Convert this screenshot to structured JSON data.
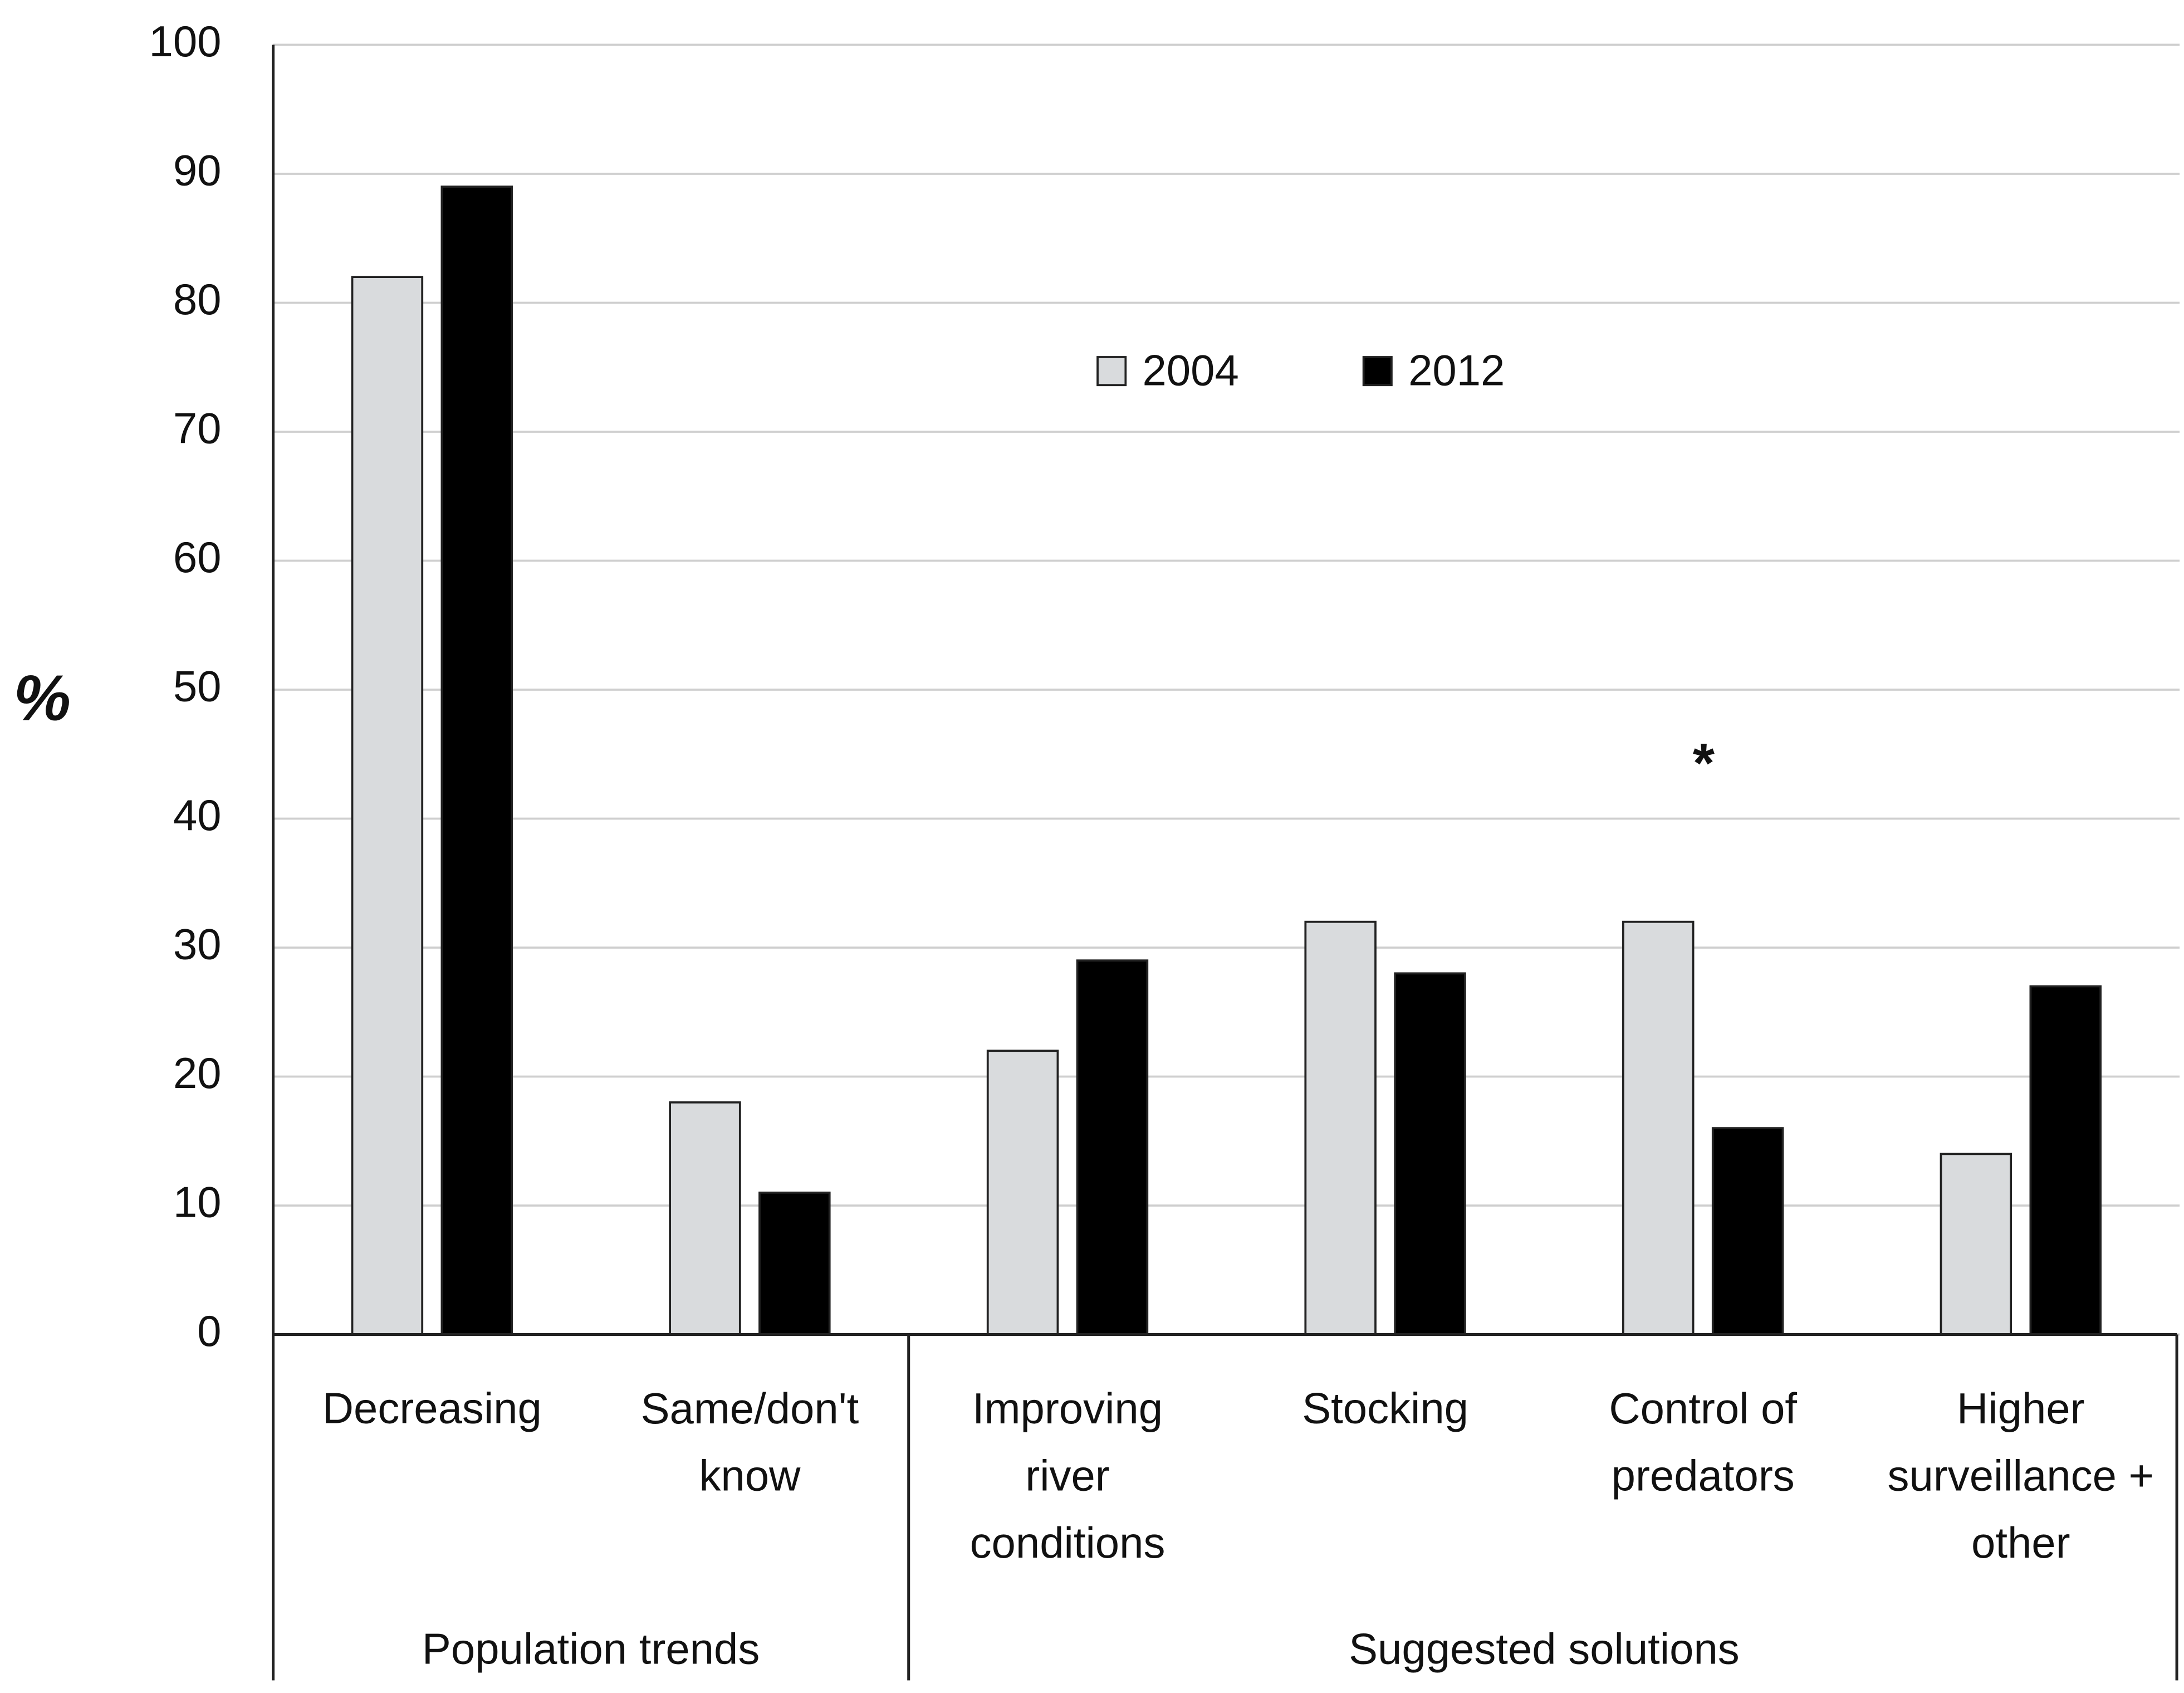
{
  "chart_data": {
    "type": "bar",
    "y_label": "%",
    "annotation": "*",
    "groups": [
      {
        "name": "Population trends",
        "categories": [
          "Decreasing",
          "Same/don't\nknow"
        ]
      },
      {
        "name": "Suggested solutions",
        "categories": [
          "Improving\nriver\nconditions",
          "Stocking",
          "Control of\npredators",
          "Higher\nsurveillance +\nother"
        ]
      }
    ],
    "series": [
      {
        "name": "2004",
        "color": "#d9dbdd",
        "values": [
          82,
          18,
          22,
          32,
          32,
          14
        ]
      },
      {
        "name": "2012",
        "color": "#000000",
        "values": [
          89,
          11,
          29,
          28,
          16,
          27
        ]
      }
    ],
    "ylim": [
      0,
      100
    ],
    "yticks": [
      0,
      10,
      20,
      30,
      40,
      50,
      60,
      70,
      80,
      90,
      100
    ],
    "grid": true
  }
}
